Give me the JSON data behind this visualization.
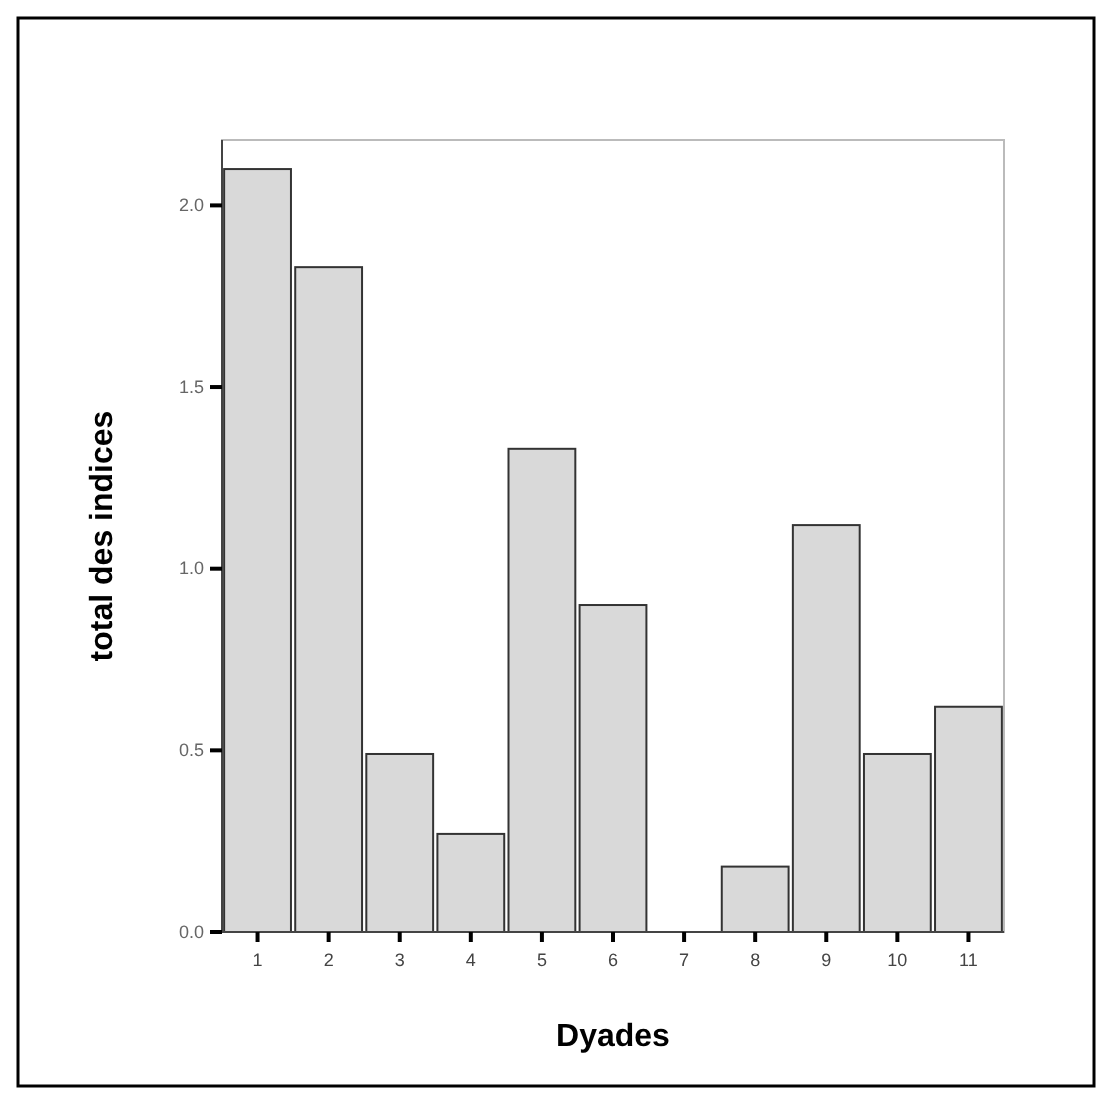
{
  "chart_data": {
    "type": "bar",
    "xlabel": "Dyades",
    "ylabel": "total des indices",
    "categories": [
      "1",
      "2",
      "3",
      "4",
      "5",
      "6",
      "7",
      "8",
      "9",
      "10",
      "11"
    ],
    "values": [
      2.1,
      1.83,
      0.49,
      0.27,
      1.33,
      0.9,
      0,
      0.18,
      1.12,
      0.49,
      0.62
    ],
    "color": "#d9d9d9",
    "ylim": [
      0,
      2.18
    ],
    "yticks": [
      {
        "value": 0,
        "label": "0.0"
      },
      {
        "value": 0.5,
        "label": "0.5"
      },
      {
        "value": 1,
        "label": "1.0"
      },
      {
        "value": 1.5,
        "label": "1.5"
      },
      {
        "value": 2,
        "label": "2.0"
      }
    ],
    "grid": false
  }
}
